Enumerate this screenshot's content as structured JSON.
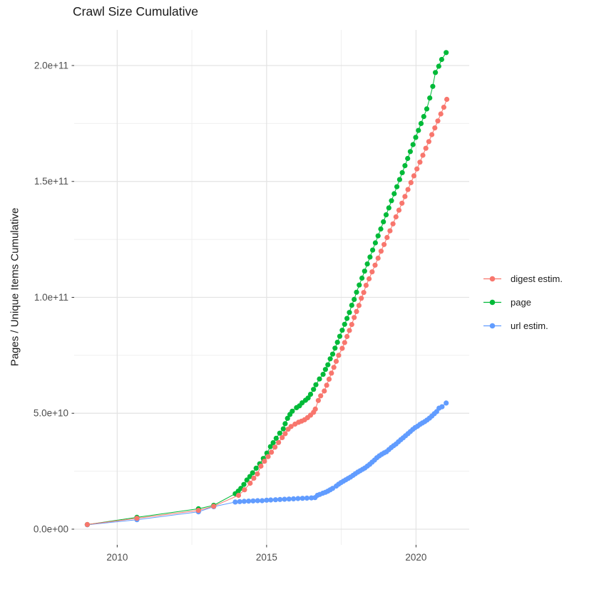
{
  "title": "Crawl Size Cumulative",
  "y_axis_title": "Pages / Unique Items Cumulative",
  "chart_data": {
    "type": "scatter",
    "title": "Crawl Size Cumulative",
    "xlabel": "",
    "ylabel": "Pages / Unique Items Cumulative",
    "grid": true,
    "legend_position": "right",
    "x_axis": {
      "range": [
        2008.56,
        2021.78
      ],
      "ticks": [
        2010,
        2015,
        2020
      ],
      "tick_labels": [
        "2010",
        "2015",
        "2020"
      ],
      "minor_ticks": [
        2012.5,
        2017.5
      ]
    },
    "y_axis": {
      "range": [
        -6760000000.0,
        215360000000.0
      ],
      "ticks": [
        0,
        50000000000.0,
        100000000000.0,
        150000000000.0,
        200000000000.0
      ],
      "tick_labels": [
        "0.0e+00",
        "5.0e+10",
        "1.0e+11",
        "1.5e+11",
        "2.0e+11"
      ],
      "minor_ticks": [
        25000000000.0,
        75000000000.0,
        125000000000.0,
        175000000000.0
      ]
    },
    "series": [
      {
        "name": "digest estim.",
        "color": "#F8766D",
        "points": [
          [
            2009.0,
            2000000000.0
          ],
          [
            2010.66,
            4700000000.0
          ],
          [
            2012.72,
            8100000000.0
          ],
          [
            2013.23,
            9900000000.0
          ],
          [
            2014.06,
            14600000000.0
          ],
          [
            2014.26,
            17000000000.0
          ],
          [
            2014.45,
            19800000000.0
          ],
          [
            2014.57,
            22000000000.0
          ],
          [
            2014.69,
            23800000000.0
          ],
          [
            2014.81,
            27200000000.0
          ],
          [
            2014.93,
            29300000000.0
          ],
          [
            2015.05,
            31300000000.0
          ],
          [
            2015.16,
            33200000000.0
          ],
          [
            2015.28,
            35400000000.0
          ],
          [
            2015.4,
            37400000000.0
          ],
          [
            2015.52,
            39500000000.0
          ],
          [
            2015.62,
            41200000000.0
          ],
          [
            2015.72,
            43100000000.0
          ],
          [
            2015.82,
            44300000000.0
          ],
          [
            2015.95,
            45300000000.0
          ],
          [
            2016.07,
            46100000000.0
          ],
          [
            2016.17,
            46600000000.0
          ],
          [
            2016.27,
            47200000000.0
          ],
          [
            2016.37,
            48100000000.0
          ],
          [
            2016.47,
            49200000000.0
          ],
          [
            2016.57,
            50400000000.0
          ],
          [
            2016.63,
            51800000000.0
          ],
          [
            2016.73,
            55500000000.0
          ],
          [
            2016.81,
            57500000000.0
          ],
          [
            2016.93,
            59600000000.0
          ],
          [
            2017.01,
            62100000000.0
          ],
          [
            2017.09,
            64700000000.0
          ],
          [
            2017.17,
            67300000000.0
          ],
          [
            2017.25,
            69800000000.0
          ],
          [
            2017.33,
            72400000000.0
          ],
          [
            2017.41,
            75000000000.0
          ],
          [
            2017.53,
            78000000000.0
          ],
          [
            2017.61,
            80500000000.0
          ],
          [
            2017.69,
            83100000000.0
          ],
          [
            2017.77,
            85700000000.0
          ],
          [
            2017.85,
            88300000000.0
          ],
          [
            2017.93,
            91300000000.0
          ],
          [
            2018.01,
            93900000000.0
          ],
          [
            2018.09,
            96500000000.0
          ],
          [
            2018.17,
            99600000000.0
          ],
          [
            2018.25,
            102100000000.0
          ],
          [
            2018.33,
            105200000000.0
          ],
          [
            2018.43,
            108000000000.0
          ],
          [
            2018.53,
            111000000000.0
          ],
          [
            2018.63,
            113900000000.0
          ],
          [
            2018.73,
            116900000000.0
          ],
          [
            2018.83,
            119900000000.0
          ],
          [
            2018.93,
            122800000000.0
          ],
          [
            2019.03,
            125800000000.0
          ],
          [
            2019.13,
            128700000000.0
          ],
          [
            2019.23,
            131700000000.0
          ],
          [
            2019.33,
            134700000000.0
          ],
          [
            2019.43,
            137600000000.0
          ],
          [
            2019.53,
            140600000000.0
          ],
          [
            2019.63,
            143500000000.0
          ],
          [
            2019.73,
            146500000000.0
          ],
          [
            2019.83,
            149500000000.0
          ],
          [
            2019.93,
            152400000000.0
          ],
          [
            2020.03,
            155400000000.0
          ],
          [
            2020.13,
            158300000000.0
          ],
          [
            2020.23,
            161300000000.0
          ],
          [
            2020.33,
            164300000000.0
          ],
          [
            2020.43,
            167200000000.0
          ],
          [
            2020.53,
            170200000000.0
          ],
          [
            2020.63,
            173100000000.0
          ],
          [
            2020.73,
            176100000000.0
          ],
          [
            2020.83,
            179100000000.0
          ],
          [
            2020.93,
            182000000000.0
          ],
          [
            2021.03,
            185400000000.0
          ]
        ]
      },
      {
        "name": "page",
        "color": "#00BA38",
        "points": [
          [
            2009.0,
            2000000000.0
          ],
          [
            2010.66,
            5100000000.0
          ],
          [
            2012.72,
            8800000000.0
          ],
          [
            2013.23,
            10300000000.0
          ],
          [
            2013.95,
            15300000000.0
          ],
          [
            2014.05,
            16400000000.0
          ],
          [
            2014.14,
            17600000000.0
          ],
          [
            2014.24,
            19300000000.0
          ],
          [
            2014.34,
            21200000000.0
          ],
          [
            2014.44,
            22700000000.0
          ],
          [
            2014.53,
            24300000000.0
          ],
          [
            2014.65,
            26300000000.0
          ],
          [
            2014.77,
            28200000000.0
          ],
          [
            2014.89,
            30500000000.0
          ],
          [
            2015.01,
            32800000000.0
          ],
          [
            2015.13,
            35600000000.0
          ],
          [
            2015.22,
            37300000000.0
          ],
          [
            2015.32,
            39200000000.0
          ],
          [
            2015.44,
            41400000000.0
          ],
          [
            2015.56,
            43300000000.0
          ],
          [
            2015.62,
            45500000000.0
          ],
          [
            2015.7,
            47800000000.0
          ],
          [
            2015.78,
            49500000000.0
          ],
          [
            2015.86,
            50900000000.0
          ],
          [
            2016.0,
            52400000000.0
          ],
          [
            2016.1,
            53200000000.0
          ],
          [
            2016.19,
            54500000000.0
          ],
          [
            2016.3,
            55600000000.0
          ],
          [
            2016.39,
            56600000000.0
          ],
          [
            2016.47,
            58200000000.0
          ],
          [
            2016.57,
            60300000000.0
          ],
          [
            2016.65,
            62300000000.0
          ],
          [
            2016.77,
            64800000000.0
          ],
          [
            2016.89,
            66800000000.0
          ],
          [
            2016.97,
            68900000000.0
          ],
          [
            2017.05,
            70900000000.0
          ],
          [
            2017.13,
            73500000000.0
          ],
          [
            2017.21,
            75500000000.0
          ],
          [
            2017.29,
            78100000000.0
          ],
          [
            2017.37,
            80600000000.0
          ],
          [
            2017.45,
            83200000000.0
          ],
          [
            2017.53,
            85800000000.0
          ],
          [
            2017.61,
            88400000000.0
          ],
          [
            2017.69,
            90900000000.0
          ],
          [
            2017.77,
            93500000000.0
          ],
          [
            2017.85,
            96600000000.0
          ],
          [
            2017.93,
            99100000000.0
          ],
          [
            2018.01,
            102200000000.0
          ],
          [
            2018.1,
            105300000000.0
          ],
          [
            2018.19,
            108300000000.0
          ],
          [
            2018.28,
            111300000000.0
          ],
          [
            2018.37,
            114400000000.0
          ],
          [
            2018.46,
            117400000000.0
          ],
          [
            2018.55,
            120400000000.0
          ],
          [
            2018.64,
            123500000000.0
          ],
          [
            2018.73,
            126500000000.0
          ],
          [
            2018.82,
            129500000000.0
          ],
          [
            2018.91,
            132600000000.0
          ],
          [
            2019.0,
            135600000000.0
          ],
          [
            2019.09,
            138600000000.0
          ],
          [
            2019.18,
            141700000000.0
          ],
          [
            2019.27,
            144700000000.0
          ],
          [
            2019.36,
            147700000000.0
          ],
          [
            2019.45,
            150800000000.0
          ],
          [
            2019.54,
            153800000000.0
          ],
          [
            2019.63,
            156800000000.0
          ],
          [
            2019.72,
            159900000000.0
          ],
          [
            2019.81,
            162900000000.0
          ],
          [
            2019.9,
            165900000000.0
          ],
          [
            2019.99,
            169000000000.0
          ],
          [
            2020.08,
            172000000000.0
          ],
          [
            2020.17,
            175000000000.0
          ],
          [
            2020.26,
            178000000000.0
          ],
          [
            2020.36,
            181300000000.0
          ],
          [
            2020.46,
            186000000000.0
          ],
          [
            2020.56,
            191000000000.0
          ],
          [
            2020.65,
            197000000000.0
          ],
          [
            2020.76,
            199700000000.0
          ],
          [
            2020.86,
            202600000000.0
          ],
          [
            2021.01,
            205600000000.0
          ]
        ]
      },
      {
        "name": "url estim.",
        "color": "#619CFF",
        "points": [
          [
            2009.0,
            1900000000.0
          ],
          [
            2010.66,
            4100000000.0
          ],
          [
            2012.72,
            7500000000.0
          ],
          [
            2013.23,
            9700000000.0
          ],
          [
            2013.95,
            11700000000.0
          ],
          [
            2014.1,
            11900000000.0
          ],
          [
            2014.25,
            12000000000.0
          ],
          [
            2014.4,
            12100000000.0
          ],
          [
            2014.55,
            12200000000.0
          ],
          [
            2014.7,
            12300000000.0
          ],
          [
            2014.85,
            12300000000.0
          ],
          [
            2015.0,
            12500000000.0
          ],
          [
            2015.14,
            12600000000.0
          ],
          [
            2015.3,
            12700000000.0
          ],
          [
            2015.45,
            12800000000.0
          ],
          [
            2015.6,
            12900000000.0
          ],
          [
            2015.75,
            13000000000.0
          ],
          [
            2015.9,
            13100000000.0
          ],
          [
            2016.05,
            13200000000.0
          ],
          [
            2016.2,
            13300000000.0
          ],
          [
            2016.35,
            13400000000.0
          ],
          [
            2016.5,
            13500000000.0
          ],
          [
            2016.62,
            13600000000.0
          ],
          [
            2016.7,
            14600000000.0
          ],
          [
            2016.78,
            15000000000.0
          ],
          [
            2016.88,
            15500000000.0
          ],
          [
            2016.97,
            15900000000.0
          ],
          [
            2017.05,
            16400000000.0
          ],
          [
            2017.13,
            17000000000.0
          ],
          [
            2017.21,
            17600000000.0
          ],
          [
            2017.33,
            18600000000.0
          ],
          [
            2017.41,
            19400000000.0
          ],
          [
            2017.49,
            20100000000.0
          ],
          [
            2017.57,
            20700000000.0
          ],
          [
            2017.65,
            21300000000.0
          ],
          [
            2017.73,
            21900000000.0
          ],
          [
            2017.81,
            22500000000.0
          ],
          [
            2017.89,
            23200000000.0
          ],
          [
            2017.97,
            23900000000.0
          ],
          [
            2018.05,
            24600000000.0
          ],
          [
            2018.13,
            25200000000.0
          ],
          [
            2018.21,
            25800000000.0
          ],
          [
            2018.29,
            26400000000.0
          ],
          [
            2018.37,
            27200000000.0
          ],
          [
            2018.45,
            28000000000.0
          ],
          [
            2018.53,
            28900000000.0
          ],
          [
            2018.61,
            29800000000.0
          ],
          [
            2018.69,
            30800000000.0
          ],
          [
            2018.77,
            31600000000.0
          ],
          [
            2018.85,
            32300000000.0
          ],
          [
            2018.93,
            32900000000.0
          ],
          [
            2019.01,
            33400000000.0
          ],
          [
            2019.09,
            34300000000.0
          ],
          [
            2019.17,
            35200000000.0
          ],
          [
            2019.25,
            36000000000.0
          ],
          [
            2019.33,
            36700000000.0
          ],
          [
            2019.41,
            37700000000.0
          ],
          [
            2019.49,
            38600000000.0
          ],
          [
            2019.57,
            39400000000.0
          ],
          [
            2019.65,
            40300000000.0
          ],
          [
            2019.73,
            41200000000.0
          ],
          [
            2019.81,
            42100000000.0
          ],
          [
            2019.89,
            43000000000.0
          ],
          [
            2019.97,
            43800000000.0
          ],
          [
            2020.05,
            44400000000.0
          ],
          [
            2020.13,
            45200000000.0
          ],
          [
            2020.21,
            45800000000.0
          ],
          [
            2020.29,
            46400000000.0
          ],
          [
            2020.37,
            47100000000.0
          ],
          [
            2020.45,
            47900000000.0
          ],
          [
            2020.53,
            48800000000.0
          ],
          [
            2020.61,
            49800000000.0
          ],
          [
            2020.69,
            50700000000.0
          ],
          [
            2020.77,
            52200000000.0
          ],
          [
            2020.87,
            52800000000.0
          ],
          [
            2021.01,
            54400000000.0
          ]
        ]
      }
    ],
    "style": {
      "grid_major_color": "#E3E3E3",
      "grid_minor_color": "#EFEFEF",
      "tick_text_color": "#4d4d4d",
      "tick_mark_color": "#333333",
      "background": "#ffffff",
      "point_radius": 3.6
    }
  }
}
